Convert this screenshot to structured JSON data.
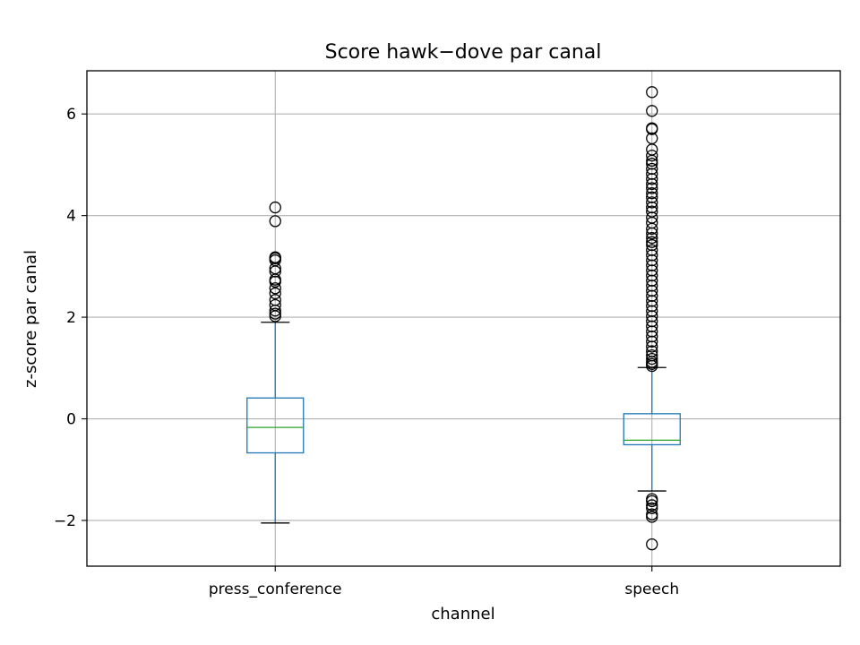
{
  "chart_data": {
    "type": "box",
    "title": "Score hawk−dove par canal",
    "xlabel": "channel",
    "ylabel": "z-score par canal",
    "ylim": [
      -2.9,
      6.85
    ],
    "yticks": [
      -2,
      0,
      2,
      4,
      6
    ],
    "ytick_labels": [
      "−2",
      "0",
      "2",
      "4",
      "6"
    ],
    "grid": true,
    "categories": [
      "press_conference",
      "speech"
    ],
    "boxes": [
      {
        "category": "press_conference",
        "whisker_low": -2.05,
        "q1": -0.67,
        "median": -0.17,
        "q3": 0.41,
        "whisker_high": 1.9,
        "outliers": [
          2.02,
          2.07,
          2.13,
          2.24,
          2.34,
          2.47,
          2.57,
          2.7,
          2.74,
          2.9,
          2.96,
          3.12,
          3.16,
          3.18,
          3.89,
          4.16
        ]
      },
      {
        "category": "speech",
        "whisker_low": -1.42,
        "q1": -0.51,
        "median": -0.42,
        "q3": 0.1,
        "whisker_high": 1.01,
        "outliers": [
          -2.47,
          -1.93,
          -1.88,
          -1.76,
          -1.7,
          -1.62,
          -1.58,
          1.04,
          1.08,
          1.12,
          1.18,
          1.25,
          1.33,
          1.42,
          1.52,
          1.62,
          1.72,
          1.82,
          1.92,
          2.02,
          2.12,
          2.22,
          2.32,
          2.42,
          2.52,
          2.62,
          2.72,
          2.82,
          2.92,
          3.02,
          3.12,
          3.22,
          3.32,
          3.42,
          3.48,
          3.56,
          3.65,
          3.74,
          3.86,
          3.96,
          4.08,
          4.16,
          4.26,
          4.36,
          4.44,
          4.54,
          4.62,
          4.72,
          4.82,
          4.92,
          5.02,
          5.08,
          5.18,
          5.3,
          5.52,
          5.7,
          5.72,
          6.06,
          6.43
        ]
      }
    ]
  },
  "colors": {
    "box": "#1f77b4",
    "median": "#2ca02c",
    "grid": "#b0b0b0",
    "axes": "#000000"
  }
}
